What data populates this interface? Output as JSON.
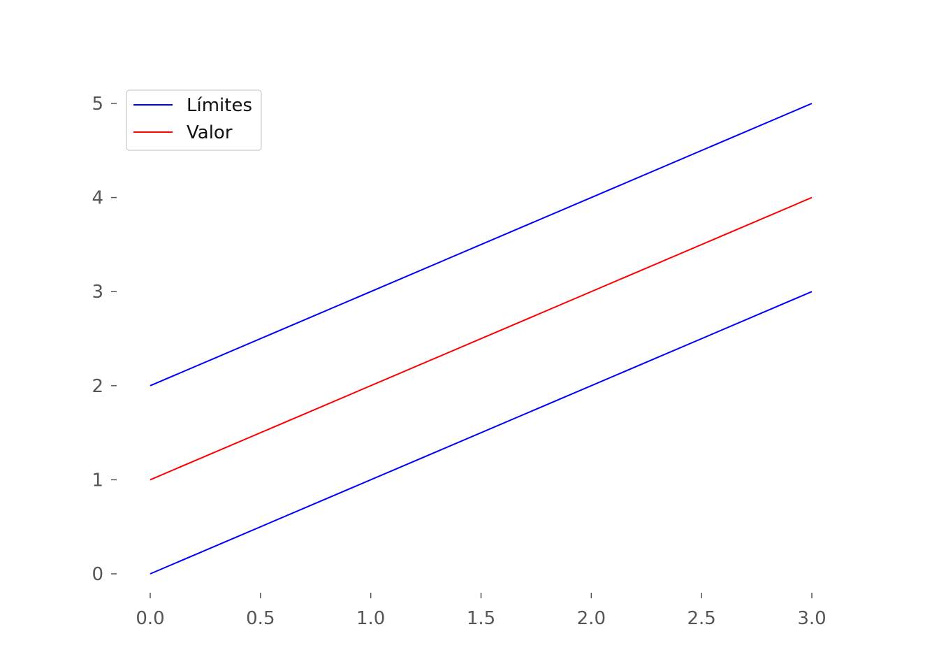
{
  "chart_data": {
    "type": "line",
    "title": "",
    "xlabel": "",
    "ylabel": "",
    "xlim": [
      0,
      3
    ],
    "ylim": [
      0,
      5
    ],
    "x_ticks": [
      0.0,
      0.5,
      1.0,
      1.5,
      2.0,
      2.5,
      3.0
    ],
    "x_tick_labels": [
      "0.0",
      "0.5",
      "1.0",
      "1.5",
      "2.0",
      "2.5",
      "3.0"
    ],
    "y_ticks": [
      0,
      1,
      2,
      3,
      4,
      5
    ],
    "y_tick_labels": [
      "0",
      "1",
      "2",
      "3",
      "4",
      "5"
    ],
    "grid": false,
    "legend_position": "top-left",
    "legend": [
      {
        "name": "Límites",
        "color": "#0000ff"
      },
      {
        "name": "Valor",
        "color": "#ff0000"
      }
    ],
    "series": [
      {
        "legend_entry": 0,
        "color": "#0000ff",
        "x": [
          0,
          3
        ],
        "y": [
          2,
          5
        ]
      },
      {
        "legend_entry": 1,
        "color": "#ff0000",
        "x": [
          0,
          3
        ],
        "y": [
          1,
          4
        ]
      },
      {
        "legend_entry": 0,
        "color": "#0000ff",
        "x": [
          0,
          3
        ],
        "y": [
          0,
          3
        ]
      }
    ]
  }
}
